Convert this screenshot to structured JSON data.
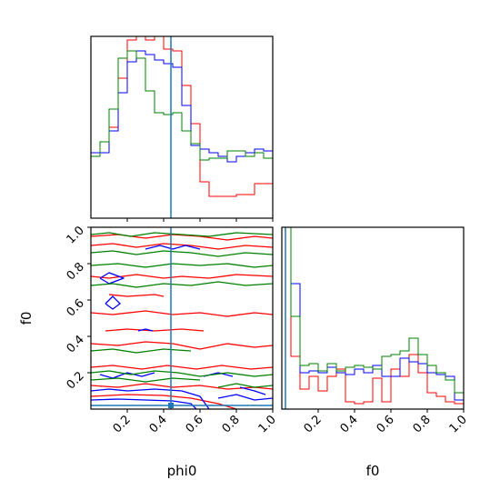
{
  "chart_data": [
    {
      "type": "histogram",
      "panel": "phi0-marginal",
      "xlim": [
        0,
        1
      ],
      "bins": [
        0.0,
        0.05,
        0.1,
        0.15,
        0.2,
        0.25,
        0.3,
        0.35,
        0.4,
        0.45,
        0.5,
        0.55,
        0.6,
        0.65,
        0.7,
        0.75,
        0.8,
        0.85,
        0.9,
        0.95,
        1.0
      ],
      "ymax": 1.0,
      "series": [
        {
          "color": "#ff0000",
          "values": [
            0.34,
            0.36,
            0.5,
            0.77,
            0.98,
            1.02,
            0.98,
            1.02,
            0.93,
            0.92,
            0.73,
            0.52,
            0.2,
            0.12,
            0.12,
            0.12,
            0.13,
            0.13,
            0.19,
            0.19
          ]
        },
        {
          "color": "#0000ff",
          "values": [
            0.36,
            0.36,
            0.48,
            0.69,
            0.86,
            0.92,
            0.9,
            0.87,
            0.85,
            0.83,
            0.62,
            0.4,
            0.38,
            0.36,
            0.34,
            0.31,
            0.34,
            0.36,
            0.38,
            0.37
          ]
        },
        {
          "color": "#008000",
          "values": [
            0.34,
            0.42,
            0.6,
            0.88,
            0.92,
            0.88,
            0.7,
            0.58,
            0.57,
            0.58,
            0.48,
            0.41,
            0.32,
            0.33,
            0.33,
            0.37,
            0.37,
            0.34,
            0.36,
            0.33
          ]
        }
      ],
      "truth": 0.44
    },
    {
      "type": "contour",
      "panel": "phi0-f0-joint",
      "xlabel": "phi0",
      "ylabel": "f0",
      "xlim": [
        0,
        1
      ],
      "ylim": [
        0,
        1
      ],
      "xticks": [
        "0.2",
        "0.4",
        "0.6",
        "0.8",
        "1.0"
      ],
      "yticks": [
        "0.2",
        "0.4",
        "0.6",
        "0.8",
        "1.0"
      ],
      "truth": [
        0.44,
        0.02
      ],
      "series": [
        {
          "color": "#ff0000",
          "lines": [
            [
              [
                0.0,
                0.95
              ],
              [
                0.15,
                0.96
              ],
              [
                0.3,
                0.94
              ],
              [
                0.45,
                0.96
              ],
              [
                0.6,
                0.95
              ],
              [
                0.75,
                0.93
              ],
              [
                0.9,
                0.95
              ],
              [
                1.0,
                0.94
              ]
            ],
            [
              [
                0.0,
                0.9
              ],
              [
                0.12,
                0.91
              ],
              [
                0.25,
                0.89
              ],
              [
                0.4,
                0.91
              ],
              [
                0.55,
                0.9
              ],
              [
                0.7,
                0.88
              ],
              [
                0.85,
                0.9
              ],
              [
                1.0,
                0.89
              ]
            ],
            [
              [
                0.0,
                0.73
              ],
              [
                0.1,
                0.72
              ],
              [
                0.25,
                0.74
              ],
              [
                0.4,
                0.72
              ],
              [
                0.5,
                0.73
              ],
              [
                0.65,
                0.72
              ],
              [
                0.8,
                0.74
              ],
              [
                1.0,
                0.73
              ]
            ],
            [
              [
                0.1,
                0.63
              ],
              [
                0.2,
                0.62
              ],
              [
                0.35,
                0.63
              ],
              [
                0.4,
                0.62
              ]
            ],
            [
              [
                0.0,
                0.53
              ],
              [
                0.12,
                0.52
              ],
              [
                0.3,
                0.54
              ],
              [
                0.45,
                0.52
              ],
              [
                0.6,
                0.53
              ],
              [
                0.75,
                0.51
              ],
              [
                0.9,
                0.53
              ],
              [
                1.0,
                0.52
              ]
            ],
            [
              [
                0.08,
                0.43
              ],
              [
                0.2,
                0.44
              ],
              [
                0.35,
                0.43
              ],
              [
                0.5,
                0.44
              ],
              [
                0.62,
                0.43
              ]
            ],
            [
              [
                0.0,
                0.36
              ],
              [
                0.15,
                0.35
              ],
              [
                0.3,
                0.37
              ],
              [
                0.45,
                0.36
              ],
              [
                0.6,
                0.33
              ],
              [
                0.75,
                0.36
              ],
              [
                0.9,
                0.34
              ],
              [
                1.0,
                0.35
              ]
            ],
            [
              [
                0.0,
                0.23
              ],
              [
                0.12,
                0.24
              ],
              [
                0.28,
                0.22
              ],
              [
                0.42,
                0.24
              ],
              [
                0.58,
                0.22
              ],
              [
                0.72,
                0.24
              ],
              [
                0.88,
                0.22
              ],
              [
                1.0,
                0.23
              ]
            ],
            [
              [
                0.0,
                0.13
              ],
              [
                0.15,
                0.12
              ],
              [
                0.3,
                0.14
              ],
              [
                0.45,
                0.12
              ],
              [
                0.6,
                0.13
              ],
              [
                0.75,
                0.11
              ],
              [
                0.9,
                0.12
              ],
              [
                1.0,
                0.11
              ]
            ],
            [
              [
                0.0,
                0.07
              ],
              [
                0.2,
                0.08
              ],
              [
                0.4,
                0.075
              ],
              [
                0.55,
                0.06
              ],
              [
                0.7,
                0.03
              ],
              [
                0.8,
                0.0
              ]
            ]
          ]
        },
        {
          "color": "#0000ff",
          "lines": [
            [
              [
                0.3,
                0.88
              ],
              [
                0.38,
                0.9
              ],
              [
                0.45,
                0.88
              ],
              [
                0.52,
                0.9
              ],
              [
                0.6,
                0.88
              ]
            ],
            [
              [
                0.05,
                0.72
              ],
              [
                0.1,
                0.75
              ],
              [
                0.18,
                0.72
              ],
              [
                0.1,
                0.69
              ],
              [
                0.05,
                0.72
              ]
            ],
            [
              [
                0.08,
                0.58
              ],
              [
                0.12,
                0.62
              ],
              [
                0.16,
                0.58
              ],
              [
                0.12,
                0.55
              ],
              [
                0.08,
                0.58
              ]
            ],
            [
              [
                0.26,
                0.43
              ],
              [
                0.3,
                0.44
              ],
              [
                0.34,
                0.43
              ]
            ],
            [
              [
                0.05,
                0.19
              ],
              [
                0.12,
                0.17
              ],
              [
                0.2,
                0.2
              ],
              [
                0.28,
                0.18
              ],
              [
                0.35,
                0.2
              ]
            ],
            [
              [
                0.0,
                0.1
              ],
              [
                0.1,
                0.11
              ],
              [
                0.2,
                0.1
              ],
              [
                0.35,
                0.11
              ],
              [
                0.5,
                0.1
              ],
              [
                0.6,
                0.07
              ],
              [
                0.65,
                0.0
              ]
            ],
            [
              [
                0.0,
                0.05
              ],
              [
                0.15,
                0.055
              ],
              [
                0.3,
                0.05
              ],
              [
                0.45,
                0.045
              ],
              [
                0.55,
                0.03
              ],
              [
                0.58,
                0.0
              ]
            ],
            [
              [
                0.62,
                0.18
              ],
              [
                0.7,
                0.2
              ],
              [
                0.78,
                0.18
              ]
            ],
            [
              [
                0.82,
                0.12
              ],
              [
                0.9,
                0.1
              ],
              [
                0.96,
                0.08
              ]
            ],
            [
              [
                0.7,
                0.06
              ],
              [
                0.8,
                0.08
              ],
              [
                0.9,
                0.05
              ],
              [
                1.0,
                0.06
              ]
            ]
          ]
        },
        {
          "color": "#008000",
          "lines": [
            [
              [
                0.0,
                0.96
              ],
              [
                0.1,
                0.97
              ],
              [
                0.22,
                0.95
              ],
              [
                0.35,
                0.97
              ],
              [
                0.5,
                0.96
              ],
              [
                0.65,
                0.95
              ],
              [
                0.8,
                0.97
              ],
              [
                1.0,
                0.96
              ]
            ],
            [
              [
                0.0,
                0.86
              ],
              [
                0.12,
                0.87
              ],
              [
                0.25,
                0.85
              ],
              [
                0.4,
                0.87
              ],
              [
                0.55,
                0.86
              ],
              [
                0.7,
                0.84
              ],
              [
                0.85,
                0.86
              ],
              [
                1.0,
                0.85
              ]
            ],
            [
              [
                0.0,
                0.79
              ],
              [
                0.15,
                0.8
              ],
              [
                0.3,
                0.78
              ],
              [
                0.45,
                0.8
              ],
              [
                0.6,
                0.79
              ],
              [
                0.75,
                0.8
              ],
              [
                0.9,
                0.78
              ],
              [
                1.0,
                0.79
              ]
            ],
            [
              [
                0.0,
                0.68
              ],
              [
                0.12,
                0.69
              ],
              [
                0.25,
                0.67
              ],
              [
                0.4,
                0.69
              ],
              [
                0.55,
                0.68
              ],
              [
                0.7,
                0.7
              ],
              [
                0.85,
                0.68
              ],
              [
                1.0,
                0.69
              ]
            ],
            [
              [
                0.0,
                0.32
              ],
              [
                0.12,
                0.33
              ],
              [
                0.25,
                0.31
              ],
              [
                0.4,
                0.33
              ],
              [
                0.55,
                0.32
              ]
            ],
            [
              [
                0.0,
                0.2
              ],
              [
                0.1,
                0.21
              ],
              [
                0.22,
                0.19
              ],
              [
                0.35,
                0.21
              ],
              [
                0.48,
                0.2
              ],
              [
                0.6,
                0.18
              ],
              [
                0.75,
                0.2
              ],
              [
                0.9,
                0.18
              ],
              [
                1.0,
                0.19
              ]
            ],
            [
              [
                0.0,
                0.16
              ],
              [
                0.15,
                0.17
              ],
              [
                0.3,
                0.15
              ],
              [
                0.45,
                0.17
              ],
              [
                0.6,
                0.16
              ]
            ],
            [
              [
                0.7,
                0.12
              ],
              [
                0.8,
                0.14
              ],
              [
                0.9,
                0.12
              ],
              [
                1.0,
                0.13
              ]
            ]
          ]
        }
      ]
    },
    {
      "type": "histogram",
      "panel": "f0-marginal",
      "xlabel": "f0",
      "xlim": [
        0,
        1
      ],
      "xticks": [
        "0.2",
        "0.4",
        "0.6",
        "0.8",
        "1.0"
      ],
      "bins": [
        0.0,
        0.05,
        0.1,
        0.15,
        0.2,
        0.25,
        0.3,
        0.35,
        0.4,
        0.45,
        0.5,
        0.55,
        0.6,
        0.65,
        0.7,
        0.75,
        0.8,
        0.85,
        0.9,
        0.95,
        1.0
      ],
      "ymax": 1.0,
      "series": [
        {
          "color": "#ff0000",
          "values": [
            1.02,
            0.29,
            0.11,
            0.18,
            0.1,
            0.18,
            0.22,
            0.04,
            0.03,
            0.04,
            0.17,
            0.04,
            0.22,
            0.18,
            0.3,
            0.2,
            0.09,
            0.07,
            0.04,
            0.03
          ]
        },
        {
          "color": "#0000ff",
          "values": [
            1.02,
            0.69,
            0.2,
            0.21,
            0.2,
            0.23,
            0.2,
            0.19,
            0.22,
            0.2,
            0.24,
            0.18,
            0.18,
            0.28,
            0.26,
            0.25,
            0.2,
            0.19,
            0.18,
            0.05
          ]
        },
        {
          "color": "#008000",
          "values": [
            1.02,
            0.51,
            0.24,
            0.25,
            0.21,
            0.25,
            0.21,
            0.23,
            0.24,
            0.23,
            0.22,
            0.29,
            0.3,
            0.32,
            0.39,
            0.3,
            0.24,
            0.2,
            0.16,
            0.09
          ]
        }
      ],
      "truth": 0.02
    }
  ]
}
